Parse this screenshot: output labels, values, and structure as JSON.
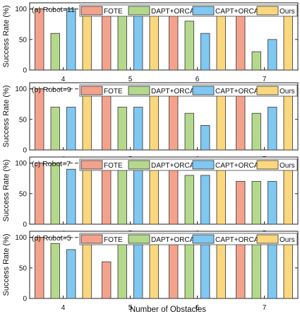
{
  "figure": {
    "xlabel": "Number of Obstacles",
    "ylabel": "Success Rate (%)"
  },
  "colors": {
    "FOTE": "#f4a28c",
    "DAPT+ORCA": "#b5d98c",
    "CAPT+ORCA": "#7fc8f2",
    "Ours": "#fbd77e",
    "reference_line": "#555555"
  },
  "chart_data": [
    {
      "type": "bar",
      "title": "(a) Robot=11",
      "categories": [
        "4",
        "5",
        "6",
        "7"
      ],
      "ylabel": "Success Rate (%)",
      "xlabel": "",
      "ylim": [
        0,
        110
      ],
      "yticks": [
        0,
        50,
        100
      ],
      "reference_line": 100,
      "legend_position": "top",
      "series": [
        {
          "name": "FOTE",
          "values": [
            100,
            100,
            100,
            100
          ]
        },
        {
          "name": "DAPT+ORCA",
          "values": [
            60,
            90,
            80,
            30
          ]
        },
        {
          "name": "CAPT+ORCA",
          "values": [
            100,
            90,
            60,
            50
          ]
        },
        {
          "name": "Ours",
          "values": [
            100,
            100,
            100,
            100
          ]
        }
      ]
    },
    {
      "type": "bar",
      "title": "(b) Robot=9",
      "categories": [
        "4",
        "5",
        "6",
        "7"
      ],
      "ylabel": "Success Rate (%)",
      "xlabel": "",
      "ylim": [
        0,
        110
      ],
      "yticks": [
        0,
        50,
        100
      ],
      "reference_line": 100,
      "legend_position": "top",
      "series": [
        {
          "name": "FOTE",
          "values": [
            100,
            100,
            100,
            100
          ]
        },
        {
          "name": "DAPT+ORCA",
          "values": [
            70,
            70,
            60,
            60
          ]
        },
        {
          "name": "CAPT+ORCA",
          "values": [
            70,
            70,
            40,
            70
          ]
        },
        {
          "name": "Ours",
          "values": [
            100,
            100,
            100,
            100
          ]
        }
      ]
    },
    {
      "type": "bar",
      "title": "(c) Robot=7",
      "categories": [
        "4",
        "5",
        "6",
        "7"
      ],
      "ylabel": "Success Rate (%)",
      "xlabel": "",
      "ylim": [
        0,
        110
      ],
      "yticks": [
        0,
        50,
        100
      ],
      "reference_line": 100,
      "legend_position": "top",
      "series": [
        {
          "name": "FOTE",
          "values": [
            100,
            100,
            90,
            70
          ]
        },
        {
          "name": "DAPT+ORCA",
          "values": [
            100,
            100,
            80,
            70
          ]
        },
        {
          "name": "CAPT+ORCA",
          "values": [
            90,
            100,
            80,
            70
          ]
        },
        {
          "name": "Ours",
          "values": [
            100,
            100,
            100,
            100
          ]
        }
      ]
    },
    {
      "type": "bar",
      "title": "(d) Robot=5",
      "categories": [
        "4",
        "5",
        "6",
        "7"
      ],
      "ylabel": "Success Rate (%)",
      "xlabel": "Number of Obstacles",
      "ylim": [
        0,
        110
      ],
      "yticks": [
        0,
        50,
        100
      ],
      "reference_line": 100,
      "legend_position": "top",
      "series": [
        {
          "name": "FOTE",
          "values": [
            100,
            60,
            100,
            90
          ]
        },
        {
          "name": "DAPT+ORCA",
          "values": [
            90,
            100,
            100,
            90
          ]
        },
        {
          "name": "CAPT+ORCA",
          "values": [
            80,
            100,
            100,
            100
          ]
        },
        {
          "name": "Ours",
          "values": [
            100,
            100,
            100,
            100
          ]
        }
      ]
    }
  ]
}
